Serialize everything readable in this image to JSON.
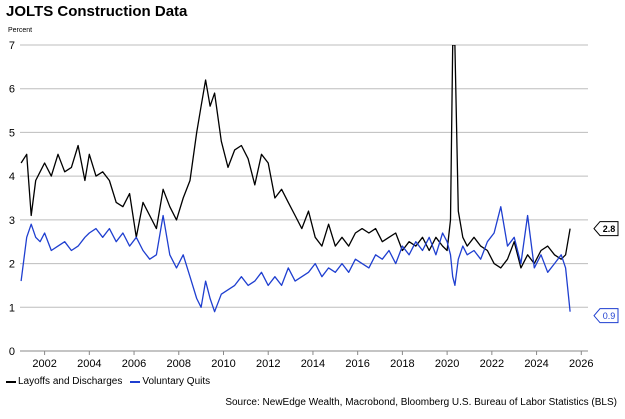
{
  "chart_data": {
    "type": "line",
    "title": "JOLTS Construction Data",
    "ylabel": "Percent",
    "xlabel": "",
    "ylim": [
      0,
      7
    ],
    "xlim": [
      2000.9,
      2026.3
    ],
    "yticks": [
      0,
      1,
      2,
      3,
      4,
      5,
      6,
      7
    ],
    "xticks": [
      2002,
      2004,
      2006,
      2008,
      2010,
      2012,
      2014,
      2016,
      2018,
      2020,
      2022,
      2024,
      2026
    ],
    "grid": true,
    "legend_position": "bottom-left",
    "series": [
      {
        "name": "Layoffs and Discharges",
        "color": "#000000",
        "last_value_label": "2.8",
        "x": [
          2000.95,
          2001.2,
          2001.4,
          2001.6,
          2001.8,
          2002.0,
          2002.3,
          2002.6,
          2002.9,
          2003.2,
          2003.5,
          2003.8,
          2004.0,
          2004.3,
          2004.6,
          2004.9,
          2005.2,
          2005.5,
          2005.8,
          2006.1,
          2006.4,
          2006.7,
          2007.0,
          2007.3,
          2007.6,
          2007.9,
          2008.2,
          2008.5,
          2008.8,
          2009.0,
          2009.2,
          2009.4,
          2009.6,
          2009.9,
          2010.2,
          2010.5,
          2010.8,
          2011.1,
          2011.4,
          2011.7,
          2012.0,
          2012.3,
          2012.6,
          2012.9,
          2013.2,
          2013.5,
          2013.8,
          2014.1,
          2014.4,
          2014.7,
          2015.0,
          2015.3,
          2015.6,
          2015.9,
          2016.2,
          2016.5,
          2016.8,
          2017.1,
          2017.4,
          2017.7,
          2018.0,
          2018.3,
          2018.6,
          2018.9,
          2019.2,
          2019.5,
          2019.8,
          2020.0,
          2020.15,
          2020.25,
          2020.35,
          2020.5,
          2020.7,
          2020.9,
          2021.2,
          2021.5,
          2021.8,
          2022.1,
          2022.4,
          2022.7,
          2023.0,
          2023.3,
          2023.6,
          2023.9,
          2024.2,
          2024.5,
          2024.8,
          2025.1,
          2025.3,
          2025.5
        ],
        "values": [
          4.3,
          4.5,
          3.1,
          3.9,
          4.1,
          4.3,
          4.0,
          4.5,
          4.1,
          4.2,
          4.7,
          3.9,
          4.5,
          4.0,
          4.1,
          3.9,
          3.4,
          3.3,
          3.6,
          2.6,
          3.4,
          3.1,
          2.8,
          3.7,
          3.3,
          3.0,
          3.5,
          3.9,
          5.0,
          5.6,
          6.2,
          5.6,
          5.9,
          4.8,
          4.2,
          4.6,
          4.7,
          4.4,
          3.8,
          4.5,
          4.3,
          3.5,
          3.7,
          3.4,
          3.1,
          2.8,
          3.2,
          2.6,
          2.4,
          2.9,
          2.4,
          2.6,
          2.4,
          2.7,
          2.8,
          2.7,
          2.8,
          2.5,
          2.6,
          2.7,
          2.3,
          2.5,
          2.4,
          2.6,
          2.3,
          2.6,
          2.4,
          2.3,
          3.0,
          7.0,
          7.0,
          3.2,
          2.6,
          2.4,
          2.6,
          2.4,
          2.3,
          2.0,
          1.9,
          2.1,
          2.5,
          1.9,
          2.2,
          2.0,
          2.3,
          2.4,
          2.2,
          2.1,
          2.2,
          2.8
        ]
      },
      {
        "name": "Voluntary Quits",
        "color": "#1f3fd0",
        "last_value_label": "0.9",
        "x": [
          2000.95,
          2001.2,
          2001.4,
          2001.6,
          2001.8,
          2002.0,
          2002.3,
          2002.6,
          2002.9,
          2003.2,
          2003.5,
          2003.8,
          2004.0,
          2004.3,
          2004.6,
          2004.9,
          2005.2,
          2005.5,
          2005.8,
          2006.1,
          2006.4,
          2006.7,
          2007.0,
          2007.3,
          2007.6,
          2007.9,
          2008.2,
          2008.5,
          2008.8,
          2009.0,
          2009.2,
          2009.4,
          2009.6,
          2009.9,
          2010.2,
          2010.5,
          2010.8,
          2011.1,
          2011.4,
          2011.7,
          2012.0,
          2012.3,
          2012.6,
          2012.9,
          2013.2,
          2013.5,
          2013.8,
          2014.1,
          2014.4,
          2014.7,
          2015.0,
          2015.3,
          2015.6,
          2015.9,
          2016.2,
          2016.5,
          2016.8,
          2017.1,
          2017.4,
          2017.7,
          2018.0,
          2018.3,
          2018.6,
          2018.9,
          2019.2,
          2019.5,
          2019.8,
          2020.0,
          2020.15,
          2020.25,
          2020.35,
          2020.5,
          2020.7,
          2020.9,
          2021.2,
          2021.5,
          2021.8,
          2022.1,
          2022.4,
          2022.7,
          2023.0,
          2023.3,
          2023.6,
          2023.9,
          2024.2,
          2024.5,
          2024.8,
          2025.1,
          2025.3,
          2025.5
        ],
        "values": [
          1.6,
          2.6,
          2.9,
          2.6,
          2.5,
          2.7,
          2.3,
          2.4,
          2.5,
          2.3,
          2.4,
          2.6,
          2.7,
          2.8,
          2.6,
          2.8,
          2.5,
          2.7,
          2.4,
          2.6,
          2.3,
          2.1,
          2.2,
          3.1,
          2.2,
          1.9,
          2.2,
          1.7,
          1.2,
          1.0,
          1.6,
          1.2,
          0.9,
          1.3,
          1.4,
          1.5,
          1.7,
          1.5,
          1.6,
          1.8,
          1.5,
          1.7,
          1.5,
          1.9,
          1.6,
          1.7,
          1.8,
          2.0,
          1.7,
          1.9,
          1.8,
          2.0,
          1.8,
          2.1,
          2.0,
          1.9,
          2.2,
          2.1,
          2.3,
          2.0,
          2.4,
          2.2,
          2.5,
          2.3,
          2.6,
          2.2,
          2.7,
          2.5,
          2.2,
          1.7,
          1.5,
          2.1,
          2.4,
          2.2,
          2.3,
          2.1,
          2.5,
          2.7,
          3.3,
          2.4,
          2.6,
          2.0,
          3.1,
          1.9,
          2.2,
          1.8,
          2.0,
          2.2,
          1.9,
          0.9
        ]
      }
    ],
    "source": "Source: NewEdge Wealth, Macrobond, Bloomberg U.S. Bureau of Labor Statistics (BLS)"
  }
}
